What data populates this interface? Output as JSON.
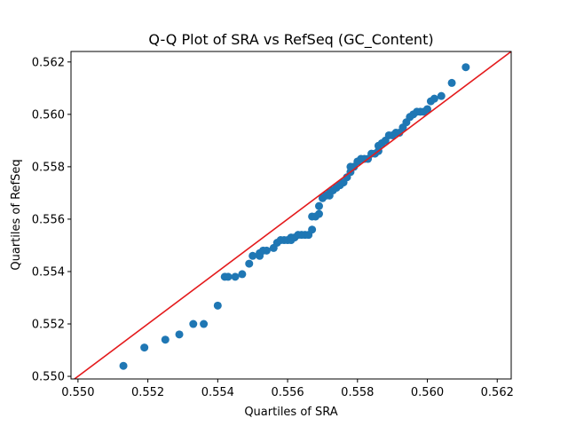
{
  "chart_data": {
    "type": "scatter",
    "title": "Q-Q Plot of SRA vs RefSeq (GC_Content)",
    "xlabel": "Quartiles of SRA",
    "ylabel": "Quartiles of RefSeq",
    "xlim": [
      0.5498,
      0.5624
    ],
    "ylim": [
      0.5499,
      0.5624
    ],
    "xticks": [
      "0.550",
      "0.552",
      "0.554",
      "0.556",
      "0.558",
      "0.560",
      "0.562"
    ],
    "yticks": [
      "0.550",
      "0.552",
      "0.554",
      "0.556",
      "0.558",
      "0.560",
      "0.562"
    ],
    "grid": false,
    "point_color": "#1f77b4",
    "line_color": "#e41a1c",
    "reference_line": "y = x",
    "points": [
      [
        0.5513,
        0.5504
      ],
      [
        0.5519,
        0.5511
      ],
      [
        0.5525,
        0.5514
      ],
      [
        0.5529,
        0.5516
      ],
      [
        0.5533,
        0.552
      ],
      [
        0.5536,
        0.552
      ],
      [
        0.554,
        0.5527
      ],
      [
        0.5542,
        0.5538
      ],
      [
        0.5543,
        0.5538
      ],
      [
        0.5545,
        0.5538
      ],
      [
        0.5547,
        0.5539
      ],
      [
        0.5549,
        0.5543
      ],
      [
        0.555,
        0.5546
      ],
      [
        0.5552,
        0.5546
      ],
      [
        0.5552,
        0.5547
      ],
      [
        0.5553,
        0.5548
      ],
      [
        0.5554,
        0.5548
      ],
      [
        0.5556,
        0.5549
      ],
      [
        0.5557,
        0.5551
      ],
      [
        0.5558,
        0.5552
      ],
      [
        0.5559,
        0.5552
      ],
      [
        0.556,
        0.5552
      ],
      [
        0.5561,
        0.5552
      ],
      [
        0.5561,
        0.5553
      ],
      [
        0.5562,
        0.5553
      ],
      [
        0.5563,
        0.5554
      ],
      [
        0.5564,
        0.5554
      ],
      [
        0.5565,
        0.5554
      ],
      [
        0.5566,
        0.5554
      ],
      [
        0.5567,
        0.5556
      ],
      [
        0.5567,
        0.5561
      ],
      [
        0.5568,
        0.5561
      ],
      [
        0.5569,
        0.5562
      ],
      [
        0.5569,
        0.5565
      ],
      [
        0.557,
        0.5568
      ],
      [
        0.5571,
        0.5569
      ],
      [
        0.5572,
        0.5569
      ],
      [
        0.5572,
        0.557
      ],
      [
        0.5573,
        0.5571
      ],
      [
        0.5574,
        0.5572
      ],
      [
        0.5575,
        0.5573
      ],
      [
        0.5575,
        0.5573
      ],
      [
        0.5576,
        0.5574
      ],
      [
        0.5577,
        0.5576
      ],
      [
        0.5578,
        0.5578
      ],
      [
        0.5578,
        0.558
      ],
      [
        0.5579,
        0.558
      ],
      [
        0.558,
        0.5582
      ],
      [
        0.5581,
        0.5583
      ],
      [
        0.5582,
        0.5583
      ],
      [
        0.5583,
        0.5583
      ],
      [
        0.5584,
        0.5585
      ],
      [
        0.5585,
        0.5585
      ],
      [
        0.5586,
        0.5586
      ],
      [
        0.5586,
        0.5588
      ],
      [
        0.5587,
        0.5589
      ],
      [
        0.5588,
        0.559
      ],
      [
        0.5589,
        0.5592
      ],
      [
        0.559,
        0.5592
      ],
      [
        0.5591,
        0.5593
      ],
      [
        0.5592,
        0.5593
      ],
      [
        0.5593,
        0.5595
      ],
      [
        0.5594,
        0.5597
      ],
      [
        0.5595,
        0.5599
      ],
      [
        0.5596,
        0.56
      ],
      [
        0.5597,
        0.5601
      ],
      [
        0.5598,
        0.5601
      ],
      [
        0.5599,
        0.5601
      ],
      [
        0.56,
        0.5602
      ],
      [
        0.5601,
        0.5605
      ],
      [
        0.5602,
        0.5606
      ],
      [
        0.5604,
        0.5607
      ],
      [
        0.5607,
        0.5612
      ],
      [
        0.5611,
        0.5618
      ]
    ]
  }
}
